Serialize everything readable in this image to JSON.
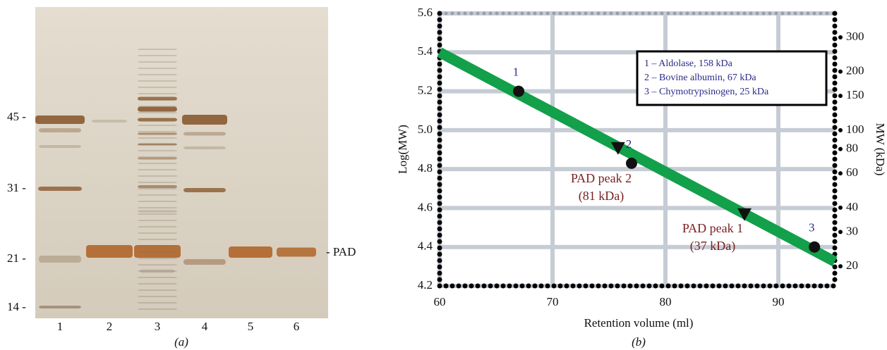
{
  "gel": {
    "markers": [
      "45 -",
      "31 -",
      "21 -",
      "14 -"
    ],
    "lanes": [
      "1",
      "2",
      "3",
      "4",
      "5",
      "6"
    ],
    "band_label": "- PAD",
    "caption": "(a)"
  },
  "chart_data": {
    "type": "scatter",
    "caption": "(b)",
    "xlabel": "Retention volume (ml)",
    "ylabel": "Log(MW)",
    "y2label": "MW (kDa)",
    "xlim": [
      60,
      95
    ],
    "xticks": [
      60,
      70,
      80,
      90
    ],
    "ylim": [
      4.2,
      5.6
    ],
    "yticks": [
      4.2,
      4.4,
      4.6,
      4.8,
      {
        "value": 5,
        "label": "5.0"
      },
      5.2,
      5.4,
      5.6
    ],
    "y2lim": [
      15.85,
      398.1
    ],
    "y2log": true,
    "y2ticks": [
      20,
      30,
      40,
      60,
      80,
      100,
      150,
      200,
      300
    ],
    "grid": true,
    "series": [
      {
        "marker": "line",
        "color": "#12a04a",
        "x": [
          60,
          95
        ],
        "values": [
          5.4,
          4.325
        ]
      },
      {
        "marker": "circle",
        "color": "#111111",
        "x": [
          67,
          77,
          93.2
        ],
        "values": [
          5.2,
          4.83,
          4.4
        ],
        "labels": [
          "1",
          "2",
          "3"
        ]
      },
      {
        "marker": "triangle",
        "color": "#111111",
        "x": [
          75.8,
          87
        ],
        "values": [
          4.91,
          4.57
        ]
      }
    ],
    "legend_box": [
      "1 – Aldolase, 158 kDa",
      "2 – Bovine albumin, 67 kDa",
      "3 – Chymotrypsinogen, 25 kDa"
    ],
    "annotations": [
      "PAD peak 2",
      "(81 kDa)",
      "PAD peak 1",
      "(37 kDa)"
    ]
  }
}
